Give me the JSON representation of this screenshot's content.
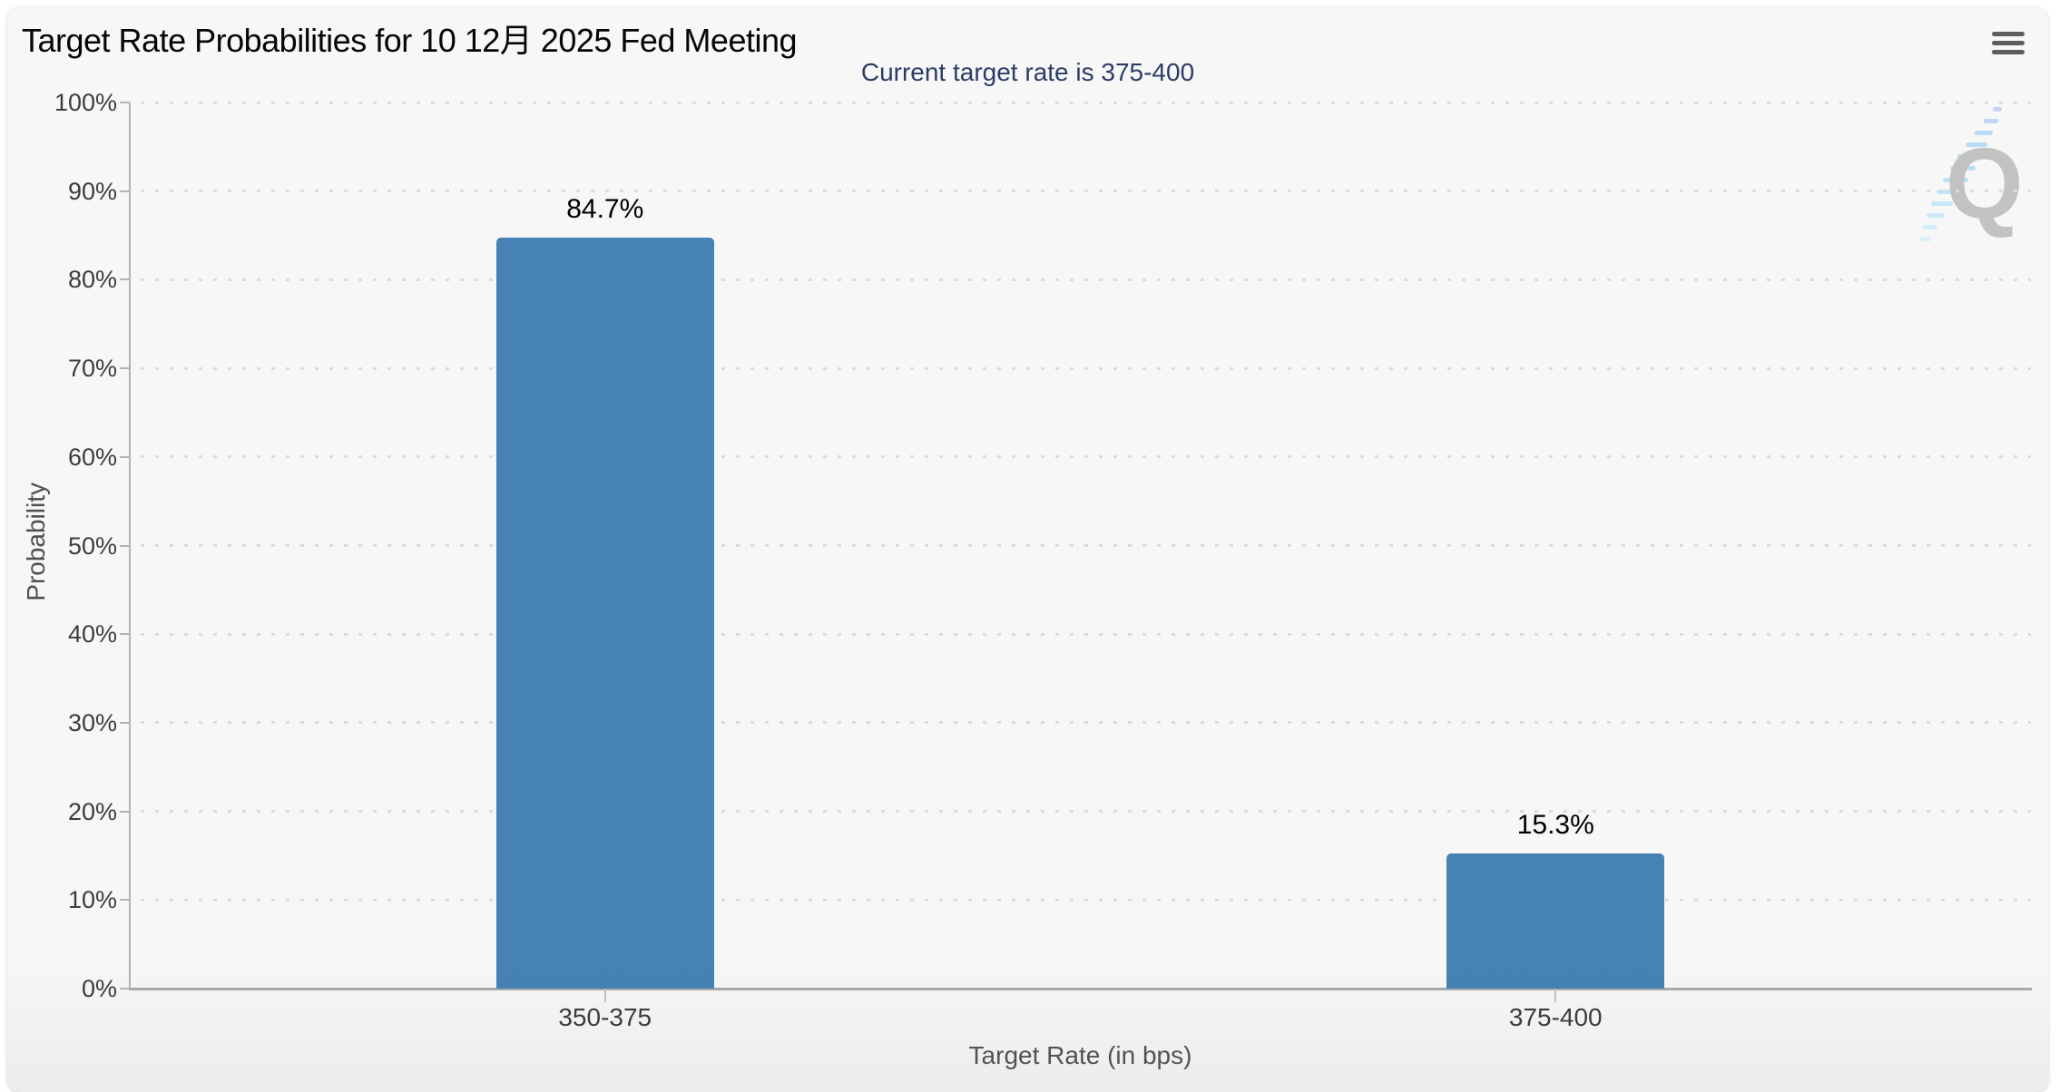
{
  "header": {
    "title": "Target Rate Probabilities for 10 12月 2025 Fed Meeting",
    "menu_icon": "hamburger-menu-icon"
  },
  "watermark": {
    "letter": "Q"
  },
  "chart_data": {
    "type": "bar",
    "title": "Target Rate Probabilities for 10 12月 2025 Fed Meeting",
    "subtitle": "Current target rate is 375-400",
    "categories": [
      "350-375",
      "375-400"
    ],
    "values": [
      84.7,
      15.3
    ],
    "data_labels": [
      "84.7%",
      "15.3%"
    ],
    "xlabel": "Target Rate (in bps)",
    "ylabel": "Probability",
    "ylim": [
      0,
      100
    ],
    "ytick_step": 10,
    "ytick_labels": [
      "0%",
      "10%",
      "20%",
      "30%",
      "40%",
      "50%",
      "60%",
      "70%",
      "80%",
      "90%",
      "100%"
    ],
    "grid": "dotted",
    "legend": "none",
    "bar_color": "#4682b4"
  },
  "colors": {
    "bar": "#4682b4",
    "subtitle_text": "#2c3c66",
    "title_text": "#060606",
    "axis_line": "#b3b3b3",
    "grid_dot": "#dcdcdc",
    "tick_label": "#3d3d3d",
    "axis_title": "#565656",
    "card_background": "#f7f7f8",
    "watermark_gray": "#c2c2c2",
    "watermark_blue": "#a3d4f0"
  }
}
